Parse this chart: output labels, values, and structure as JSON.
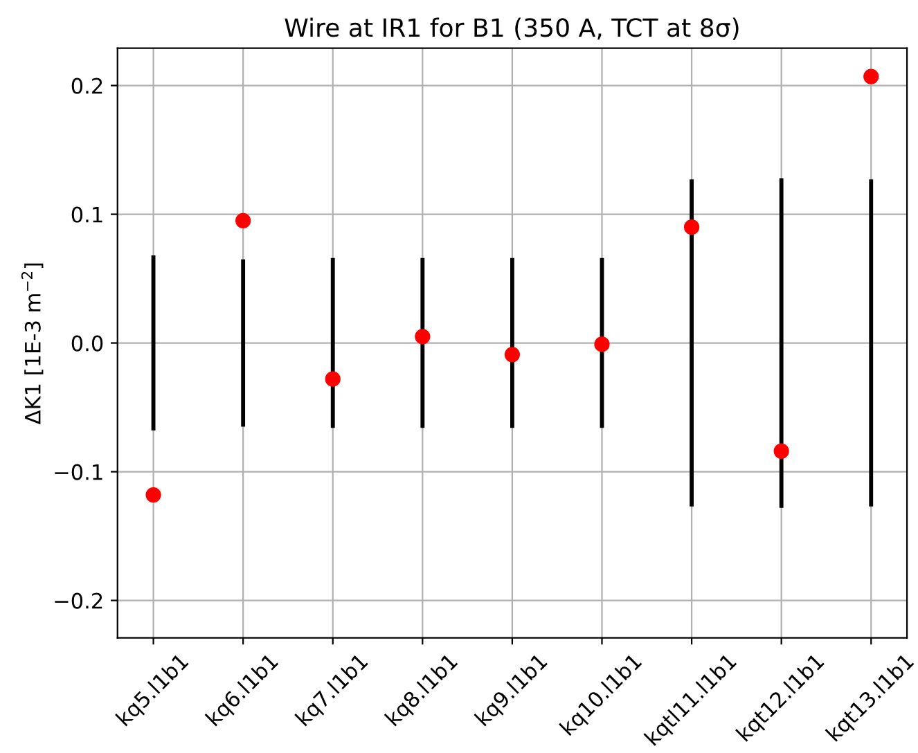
{
  "chart_data": {
    "type": "scatter",
    "title": "Wire at IR1 for B1 (350 A, TCT at 8σ)",
    "ylabel": "ΔK1 [1E-3 m$^{−2}$]",
    "categories": [
      "kq5.l1b1",
      "kq6.l1b1",
      "kq7.l1b1",
      "kq8.l1b1",
      "kq9.l1b1",
      "kq10.l1b1",
      "kqtl11.l1b1",
      "kqt12.l1b1",
      "kqt13.l1b1"
    ],
    "series": [
      {
        "type": "bar",
        "color": "#000000",
        "base": [
          -0.068,
          -0.065,
          -0.066,
          -0.066,
          -0.066,
          -0.066,
          -0.127,
          -0.128,
          -0.127
        ],
        "values": [
          0.136,
          0.13,
          0.132,
          0.132,
          0.132,
          0.132,
          0.254,
          0.256,
          0.254
        ]
      },
      {
        "color": "#ff0000",
        "marker": "circle",
        "values": [
          -0.118,
          0.095,
          -0.028,
          0.005,
          -0.009,
          -0.001,
          0.09,
          -0.084,
          0.207
        ]
      }
    ],
    "ylim": [
      -0.229,
      0.229
    ],
    "yticks": [
      {
        "value": -0.2,
        "label": "−0.2"
      },
      {
        "value": -0.1,
        "label": "−0.1"
      },
      {
        "value": 0,
        "label": "0.0"
      },
      0.1,
      0.2
    ],
    "grid": true
  }
}
